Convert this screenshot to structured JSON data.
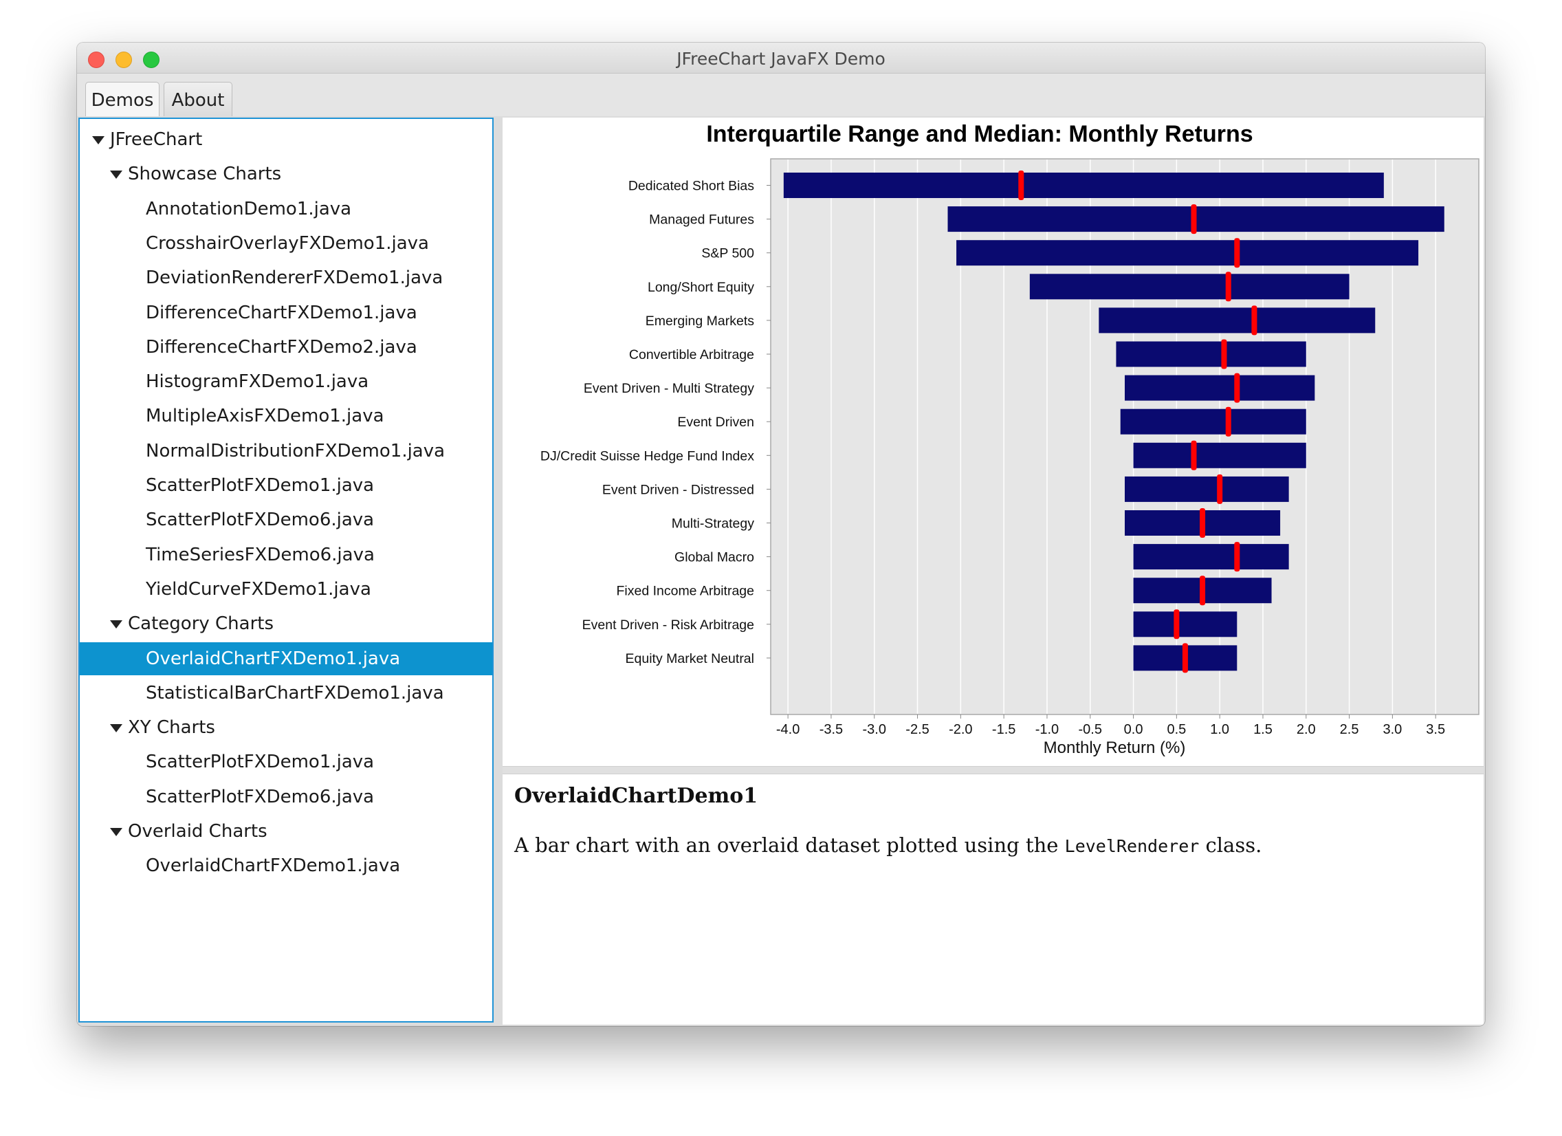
{
  "window": {
    "title": "JFreeChart JavaFX Demo"
  },
  "tabs": [
    {
      "label": "Demos",
      "active": true
    },
    {
      "label": "About",
      "active": false
    }
  ],
  "tree": {
    "items": [
      {
        "label": "JFreeChart",
        "level": 0,
        "expandable": true,
        "selected": false
      },
      {
        "label": "Showcase Charts",
        "level": 1,
        "expandable": true,
        "selected": false
      },
      {
        "label": "AnnotationDemo1.java",
        "level": 2,
        "expandable": false,
        "selected": false
      },
      {
        "label": "CrosshairOverlayFXDemo1.java",
        "level": 2,
        "expandable": false,
        "selected": false
      },
      {
        "label": "DeviationRendererFXDemo1.java",
        "level": 2,
        "expandable": false,
        "selected": false
      },
      {
        "label": "DifferenceChartFXDemo1.java",
        "level": 2,
        "expandable": false,
        "selected": false
      },
      {
        "label": "DifferenceChartFXDemo2.java",
        "level": 2,
        "expandable": false,
        "selected": false
      },
      {
        "label": "HistogramFXDemo1.java",
        "level": 2,
        "expandable": false,
        "selected": false
      },
      {
        "label": "MultipleAxisFXDemo1.java",
        "level": 2,
        "expandable": false,
        "selected": false
      },
      {
        "label": "NormalDistributionFXDemo1.java",
        "level": 2,
        "expandable": false,
        "selected": false
      },
      {
        "label": "ScatterPlotFXDemo1.java",
        "level": 2,
        "expandable": false,
        "selected": false
      },
      {
        "label": "ScatterPlotFXDemo6.java",
        "level": 2,
        "expandable": false,
        "selected": false
      },
      {
        "label": "TimeSeriesFXDemo6.java",
        "level": 2,
        "expandable": false,
        "selected": false
      },
      {
        "label": "YieldCurveFXDemo1.java",
        "level": 2,
        "expandable": false,
        "selected": false
      },
      {
        "label": "Category Charts",
        "level": 1,
        "expandable": true,
        "selected": false
      },
      {
        "label": "OverlaidChartFXDemo1.java",
        "level": 2,
        "expandable": false,
        "selected": true
      },
      {
        "label": "StatisticalBarChartFXDemo1.java",
        "level": 2,
        "expandable": false,
        "selected": false
      },
      {
        "label": "XY Charts",
        "level": 1,
        "expandable": true,
        "selected": false
      },
      {
        "label": "ScatterPlotFXDemo1.java",
        "level": 2,
        "expandable": false,
        "selected": false
      },
      {
        "label": "ScatterPlotFXDemo6.java",
        "level": 2,
        "expandable": false,
        "selected": false
      },
      {
        "label": "Overlaid Charts",
        "level": 1,
        "expandable": true,
        "selected": false
      },
      {
        "label": "OverlaidChartFXDemo1.java",
        "level": 2,
        "expandable": false,
        "selected": false
      }
    ]
  },
  "description": {
    "title": "OverlaidChartDemo1",
    "text_before": "A bar chart with an overlaid dataset plotted using the ",
    "code": "LevelRenderer",
    "text_after": " class."
  },
  "chart_data": {
    "type": "bar",
    "orientation": "horizontal",
    "title": "Interquartile Range and Median: Monthly Returns",
    "xlabel": "Monthly Return (%)",
    "ylabel": "",
    "xlim": [
      -4.2,
      4.0
    ],
    "ticks": [
      "-4.0",
      "-3.5",
      "-3.0",
      "-2.5",
      "-2.0",
      "-1.5",
      "-1.0",
      "-0.5",
      "0.0",
      "0.5",
      "1.0",
      "1.5",
      "2.0",
      "2.5",
      "3.0",
      "3.5"
    ],
    "grid": true,
    "categories": [
      "Dedicated Short Bias",
      "Managed Futures",
      "S&P 500",
      "Long/Short Equity",
      "Emerging Markets",
      "Convertible Arbitrage",
      "Event Driven - Multi Strategy",
      "Event Driven",
      "DJ/Credit Suisse Hedge Fund Index",
      "Event Driven - Distressed",
      "Multi-Strategy",
      "Global Macro",
      "Fixed Income Arbitrage",
      "Event Driven - Risk Arbitrage",
      "Equity Market Neutral"
    ],
    "series": [
      {
        "name": "",
        "type": "interval",
        "color": "#0a0a70",
        "low": [
          -4.05,
          -2.15,
          -2.05,
          -1.2,
          -0.4,
          -0.2,
          -0.1,
          -0.15,
          0.0,
          -0.1,
          -0.1,
          0.0,
          0.0,
          0.0,
          0.0
        ],
        "high": [
          2.9,
          3.6,
          3.3,
          2.5,
          2.8,
          2.0,
          2.1,
          2.0,
          2.0,
          1.8,
          1.7,
          1.8,
          1.6,
          1.2,
          1.2
        ]
      },
      {
        "name": "",
        "type": "level",
        "color": "#ff0000",
        "values": [
          -1.3,
          0.7,
          1.2,
          1.1,
          1.4,
          1.05,
          1.2,
          1.1,
          0.7,
          1.0,
          0.8,
          1.2,
          0.8,
          0.5,
          0.6
        ]
      }
    ],
    "plot_background": "#e6e6e6"
  },
  "colors": {
    "selection": "#0d93cf",
    "tree_border": "#1f93d6"
  }
}
